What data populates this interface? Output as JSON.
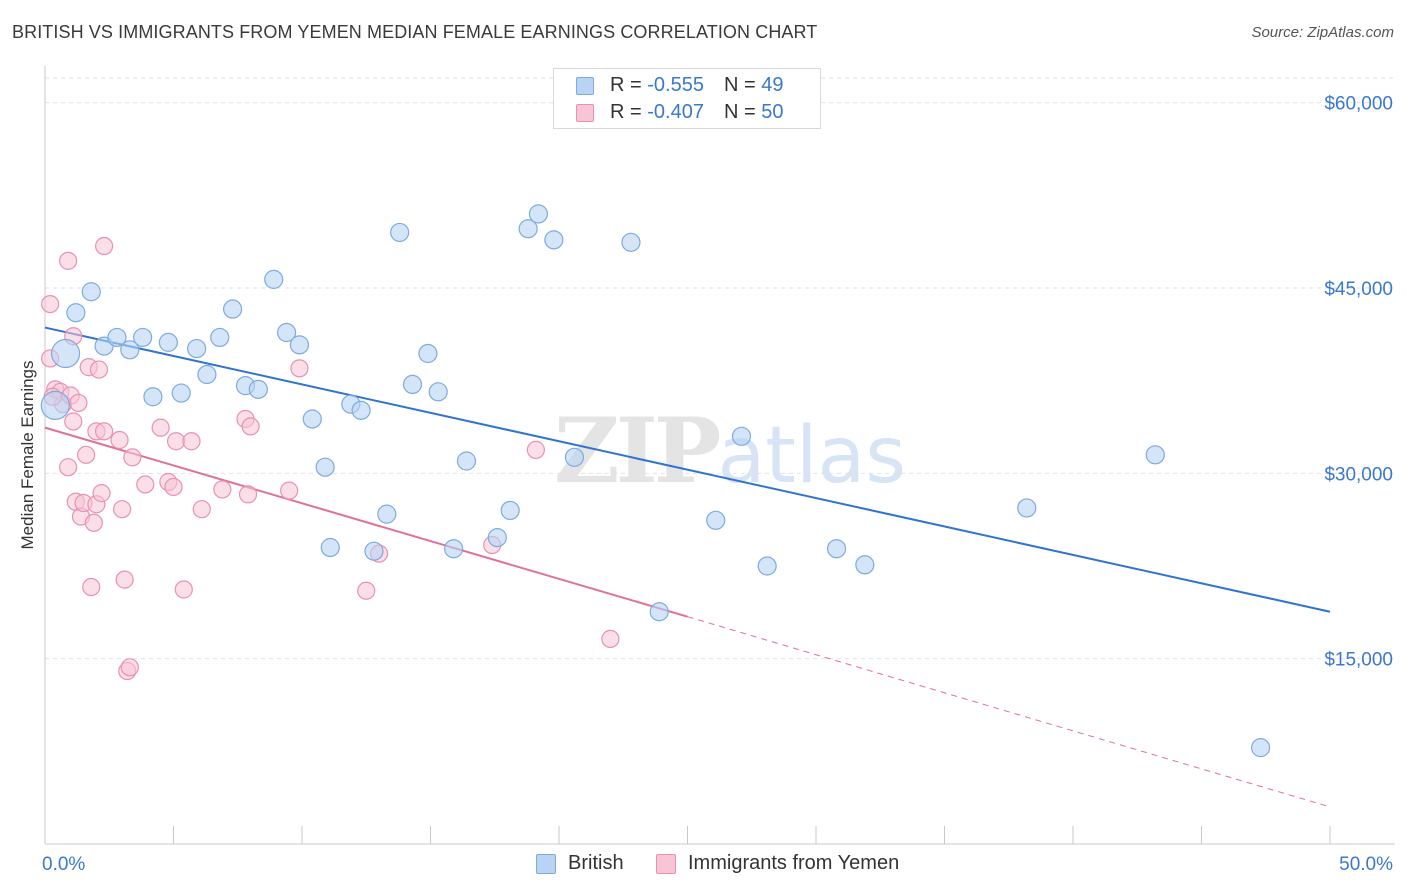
{
  "title": "BRITISH VS IMMIGRANTS FROM YEMEN MEDIAN FEMALE EARNINGS CORRELATION CHART",
  "source": "Source: ZipAtlas.com",
  "watermark": {
    "zip": "ZIP",
    "atlas": "atlas"
  },
  "legend_top": {
    "rows": [
      {
        "r_label": "R = ",
        "r_value": "-0.555",
        "n_label": "N = ",
        "n_value": "49"
      },
      {
        "r_label": "R = ",
        "r_value": "-0.407",
        "n_label": "N = ",
        "n_value": "50"
      }
    ]
  },
  "legend_bottom": {
    "british": "British",
    "yemen": "Immigrants from Yemen"
  },
  "colors": {
    "british_fill": "#b8d3f3",
    "british_stroke": "#7eaadf",
    "british_line": "#2f74d0",
    "yemen_fill": "#f8c5d6",
    "yemen_stroke": "#ea90b0",
    "yemen_line": "#e0709a",
    "axis_label": "#3a78d0",
    "grid": "#e2e2e2"
  },
  "chart_data": {
    "type": "scatter",
    "title": "BRITISH VS IMMIGRANTS FROM YEMEN MEDIAN FEMALE EARNINGS CORRELATION CHART",
    "xlabel": "",
    "ylabel": "Median Female Earnings",
    "xlim": [
      0,
      50
    ],
    "ylim": [
      0,
      62000
    ],
    "x_tick_labels": [
      "0.0%",
      "50.0%"
    ],
    "y_ticks": [
      15000,
      30000,
      45000,
      60000
    ],
    "y_tick_labels": [
      "$15,000",
      "$30,000",
      "$45,000",
      "$60,000"
    ],
    "grid": true,
    "legend_position": "top-center",
    "series": [
      {
        "name": "British",
        "r": -0.555,
        "n": 49,
        "trend": {
          "x": [
            0,
            50
          ],
          "y": [
            41800,
            18800
          ]
        },
        "points": [
          {
            "x": 0.4,
            "y": 35500,
            "big": true
          },
          {
            "x": 0.8,
            "y": 39700,
            "big": true
          },
          {
            "x": 1.2,
            "y": 43000
          },
          {
            "x": 1.8,
            "y": 44700
          },
          {
            "x": 2.3,
            "y": 40300
          },
          {
            "x": 2.8,
            "y": 41000
          },
          {
            "x": 3.3,
            "y": 40000
          },
          {
            "x": 3.8,
            "y": 41000
          },
          {
            "x": 4.2,
            "y": 36200
          },
          {
            "x": 4.8,
            "y": 40600
          },
          {
            "x": 5.3,
            "y": 36500
          },
          {
            "x": 5.9,
            "y": 40100
          },
          {
            "x": 6.3,
            "y": 38000
          },
          {
            "x": 6.8,
            "y": 41000
          },
          {
            "x": 7.3,
            "y": 43300
          },
          {
            "x": 7.8,
            "y": 37100
          },
          {
            "x": 8.3,
            "y": 36800
          },
          {
            "x": 8.9,
            "y": 45700
          },
          {
            "x": 9.4,
            "y": 41400
          },
          {
            "x": 9.9,
            "y": 40400
          },
          {
            "x": 10.4,
            "y": 34400
          },
          {
            "x": 10.9,
            "y": 30500
          },
          {
            "x": 11.1,
            "y": 24000
          },
          {
            "x": 11.9,
            "y": 35600
          },
          {
            "x": 12.3,
            "y": 35100
          },
          {
            "x": 12.8,
            "y": 23700
          },
          {
            "x": 13.3,
            "y": 26700
          },
          {
            "x": 13.8,
            "y": 49500
          },
          {
            "x": 14.3,
            "y": 37200
          },
          {
            "x": 14.9,
            "y": 39700
          },
          {
            "x": 15.3,
            "y": 36600
          },
          {
            "x": 15.9,
            "y": 23900
          },
          {
            "x": 16.4,
            "y": 31000
          },
          {
            "x": 17.6,
            "y": 24800
          },
          {
            "x": 18.1,
            "y": 27000
          },
          {
            "x": 18.8,
            "y": 49800
          },
          {
            "x": 19.2,
            "y": 51000
          },
          {
            "x": 19.8,
            "y": 48900
          },
          {
            "x": 20.6,
            "y": 31300
          },
          {
            "x": 22.8,
            "y": 48700
          },
          {
            "x": 23.9,
            "y": 18800
          },
          {
            "x": 26.1,
            "y": 26200
          },
          {
            "x": 27.1,
            "y": 33000
          },
          {
            "x": 28.1,
            "y": 22500
          },
          {
            "x": 30.8,
            "y": 23900
          },
          {
            "x": 31.9,
            "y": 22600
          },
          {
            "x": 38.2,
            "y": 27200
          },
          {
            "x": 43.2,
            "y": 31500
          },
          {
            "x": 47.3,
            "y": 7800
          }
        ]
      },
      {
        "name": "Immigrants from Yemen",
        "r": -0.407,
        "n": 50,
        "trend": {
          "x": [
            0,
            25
          ],
          "y": [
            33700,
            18400
          ]
        },
        "trend_dashed": {
          "x": [
            25,
            50
          ],
          "y": [
            18400,
            3000
          ]
        },
        "points": [
          {
            "x": 0.2,
            "y": 43700
          },
          {
            "x": 0.2,
            "y": 39300
          },
          {
            "x": 0.4,
            "y": 36800
          },
          {
            "x": 0.6,
            "y": 36600
          },
          {
            "x": 0.7,
            "y": 35600
          },
          {
            "x": 0.9,
            "y": 47200
          },
          {
            "x": 0.9,
            "y": 30500
          },
          {
            "x": 1.0,
            "y": 36300
          },
          {
            "x": 1.1,
            "y": 41100
          },
          {
            "x": 1.1,
            "y": 34200
          },
          {
            "x": 1.2,
            "y": 27700
          },
          {
            "x": 1.3,
            "y": 35700
          },
          {
            "x": 1.4,
            "y": 26500
          },
          {
            "x": 1.5,
            "y": 27600
          },
          {
            "x": 1.6,
            "y": 31500
          },
          {
            "x": 1.7,
            "y": 38600
          },
          {
            "x": 1.8,
            "y": 20800
          },
          {
            "x": 1.9,
            "y": 26000
          },
          {
            "x": 2.0,
            "y": 33400
          },
          {
            "x": 2.0,
            "y": 27500
          },
          {
            "x": 2.1,
            "y": 38400
          },
          {
            "x": 2.2,
            "y": 28400
          },
          {
            "x": 2.3,
            "y": 33400
          },
          {
            "x": 2.3,
            "y": 48400
          },
          {
            "x": 2.9,
            "y": 32700
          },
          {
            "x": 3.0,
            "y": 27100
          },
          {
            "x": 3.1,
            "y": 21400
          },
          {
            "x": 3.2,
            "y": 14000
          },
          {
            "x": 3.3,
            "y": 14300
          },
          {
            "x": 3.4,
            "y": 31300
          },
          {
            "x": 3.9,
            "y": 29100
          },
          {
            "x": 4.5,
            "y": 33700
          },
          {
            "x": 4.8,
            "y": 29300
          },
          {
            "x": 5.0,
            "y": 28900
          },
          {
            "x": 5.1,
            "y": 32600
          },
          {
            "x": 5.4,
            "y": 20600
          },
          {
            "x": 5.7,
            "y": 32600
          },
          {
            "x": 6.1,
            "y": 27100
          },
          {
            "x": 6.9,
            "y": 28700
          },
          {
            "x": 7.8,
            "y": 34400
          },
          {
            "x": 7.9,
            "y": 28300
          },
          {
            "x": 8.0,
            "y": 33800
          },
          {
            "x": 9.5,
            "y": 28600
          },
          {
            "x": 9.9,
            "y": 38500
          },
          {
            "x": 12.5,
            "y": 20500
          },
          {
            "x": 13.0,
            "y": 23500
          },
          {
            "x": 17.4,
            "y": 24200
          },
          {
            "x": 19.1,
            "y": 31900
          },
          {
            "x": 22.0,
            "y": 16600
          },
          {
            "x": 0.3,
            "y": 36200
          }
        ]
      }
    ]
  }
}
